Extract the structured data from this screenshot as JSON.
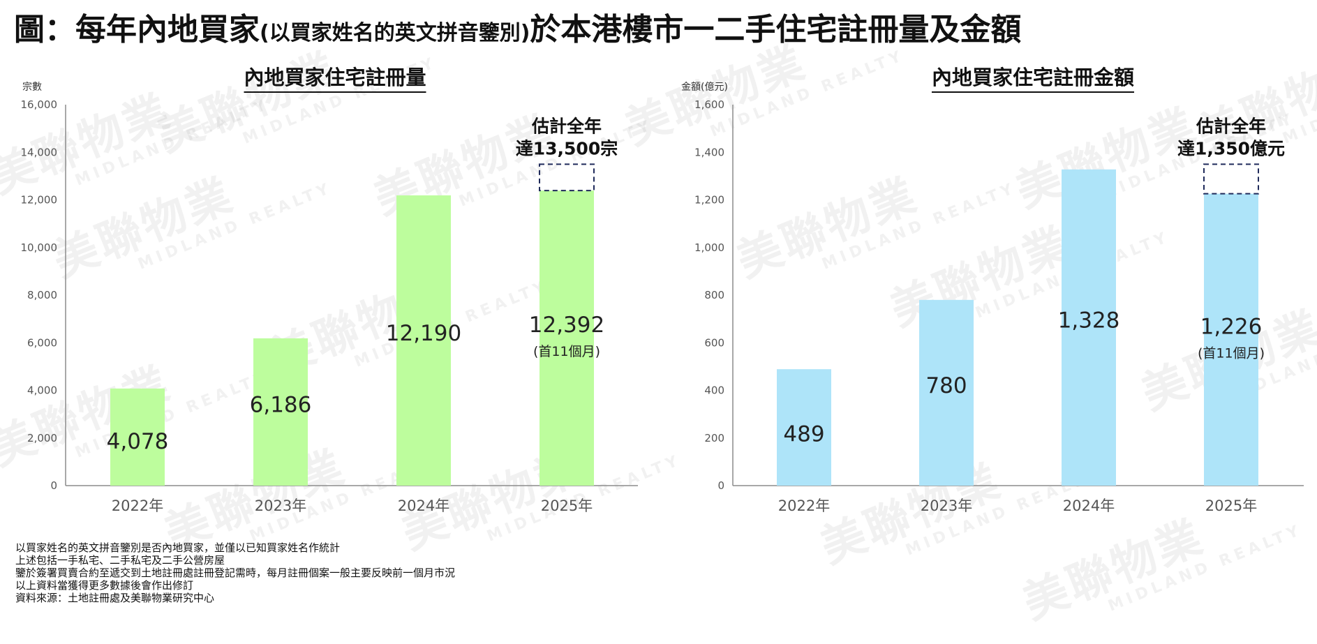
{
  "main_title": {
    "part1": "圖：每年內地買家",
    "part2": "(以買家姓名的英文拼音鑒別)",
    "part3": "於本港樓市一二手住宅註冊量及金額"
  },
  "watermark": {
    "zh": "美聯物業",
    "en": "MIDLAND REALTY"
  },
  "chart_data": [
    {
      "type": "bar",
      "title": "內地買家住宅註冊量",
      "ylabel": "宗數",
      "categories": [
        "2022年",
        "2023年",
        "2024年",
        "2025年"
      ],
      "values": [
        4078,
        6186,
        12190,
        12392
      ],
      "value_labels": [
        "4,078",
        "6,186",
        "12,190",
        "12,392"
      ],
      "last_sub_label": "(首11個月)",
      "estimate_value": 13500,
      "estimate_text": [
        "估計全年",
        "達13,500宗"
      ],
      "ylim": [
        0,
        16000
      ],
      "y_ticks": [
        0,
        2000,
        4000,
        6000,
        8000,
        10000,
        12000,
        14000,
        16000
      ],
      "y_tick_labels": [
        "0",
        "2,000",
        "4,000",
        "6,000",
        "8,000",
        "10,000",
        "12,000",
        "14,000",
        "16,000"
      ],
      "color": "#bdfd9d",
      "grid": false,
      "legend": "none"
    },
    {
      "type": "bar",
      "title": "內地買家住宅註冊金額",
      "ylabel": "金額(億元)",
      "categories": [
        "2022年",
        "2023年",
        "2024年",
        "2025年"
      ],
      "values": [
        489,
        780,
        1328,
        1226
      ],
      "value_labels": [
        "489",
        "780",
        "1,328",
        "1,226"
      ],
      "last_sub_label": "(首11個月)",
      "estimate_value": 1350,
      "estimate_text": [
        "估計全年",
        "達1,350億元"
      ],
      "ylim": [
        0,
        1600
      ],
      "y_ticks": [
        0,
        200,
        400,
        600,
        800,
        1000,
        1200,
        1400,
        1600
      ],
      "y_tick_labels": [
        "0",
        "200",
        "400",
        "600",
        "800",
        "1,000",
        "1,200",
        "1,400",
        "1,600"
      ],
      "color": "#aee4f9",
      "grid": false,
      "legend": "none"
    }
  ],
  "notes": [
    "以買家姓名的英文拼音鑒別是否內地買家，並僅以已知買家姓名作統計",
    "上述包括一手私宅、二手私宅及二手公營房屋",
    "鑒於簽署買賣合約至遞交到土地註冊處註冊登記需時，每月註冊個案一般主要反映前一個月市況",
    "以上資料當獲得更多數據後會作出修訂",
    "資料來源：土地註冊處及美聯物業研究中心"
  ]
}
